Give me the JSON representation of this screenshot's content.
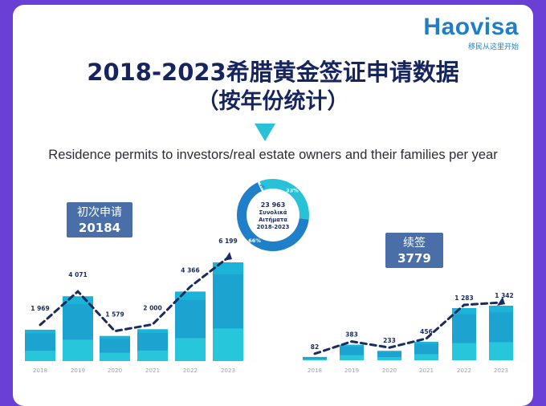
{
  "brand": {
    "name": "Haovisa",
    "slogan": "移民从这里开始"
  },
  "title": {
    "line1": "2018-2023希腊黄金签证申请数据",
    "line2": "（按年份统计）"
  },
  "subtitle": "Residence permits to investors/real estate owners and their families per year",
  "donut": {
    "total": "23 963",
    "line2": "Συνολικά",
    "line3": "Αιτήματα",
    "line4": "2018-2023",
    "segments": [
      {
        "label": "33%",
        "value": 33,
        "color": "#27c2d8"
      },
      {
        "label": "66%",
        "value": 66,
        "color": "#1f7fc8"
      },
      {
        "label": "1%",
        "value": 1,
        "color": "#dff3f8"
      }
    ]
  },
  "colors": {
    "bar_top": "#1bb4d8",
    "bar_mid": "#27c6da",
    "bar_dark": "#1f84c4",
    "line": "#1a2b5e"
  },
  "chart_data": [
    {
      "type": "bar",
      "panel_label": "初次申请",
      "panel_total": "20184",
      "categories": [
        "2018",
        "2019",
        "2020",
        "2021",
        "2022",
        "2023"
      ],
      "values": [
        1969,
        4071,
        1579,
        2000,
        4366,
        6199
      ],
      "value_labels": [
        "1 969",
        "4 071",
        "1 579",
        "2 000",
        "4 366",
        "6 199"
      ],
      "trend_line": "dashed"
    },
    {
      "type": "bar",
      "panel_label": "续签",
      "panel_total": "3779",
      "categories": [
        "2018",
        "2019",
        "2020",
        "2021",
        "2022",
        "2023"
      ],
      "values": [
        82,
        383,
        233,
        456,
        1283,
        1342
      ],
      "value_labels": [
        "82",
        "383",
        "233",
        "456",
        "1 283",
        "1 342"
      ],
      "trend_line": "dashed"
    }
  ]
}
